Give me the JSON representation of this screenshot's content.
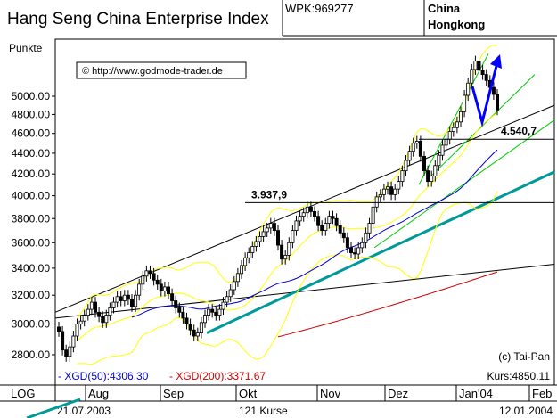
{
  "header": {
    "title": "Hang Seng China Enterprise Index",
    "wpk": "WPK:969277",
    "region_line1": "China",
    "region_line2": "Hongkong"
  },
  "copyright": "© http://www.godmode-trader.de",
  "footer": {
    "log_label": "LOG",
    "start_date": "21.07.2003",
    "count": "121 Kurse",
    "end_date": "12.01.2004"
  },
  "legend": {
    "xgd50": "- XGD(50):4306.30",
    "xgd200": "- XGD(200):3371.67",
    "source": "(c) Tai-Pan",
    "kurs": "Kurs:4850.11"
  },
  "colors": {
    "candle": "#000000",
    "trend_line": "#000000",
    "channel_line": "#009999",
    "green_line": "#00cc00",
    "bollinger": "#ffff00",
    "xgd50": "#0000cc",
    "xgd200": "#cc0000",
    "arrow": "#0000ff"
  },
  "annotations": {
    "level_upper": "4.540,7",
    "level_lower": "3.937,9"
  },
  "chart_data": {
    "type": "candlestick",
    "title": "Hang Seng China Enterprise Index",
    "ylabel": "Punkte",
    "yscale": "log",
    "ylim": [
      2680,
      5700
    ],
    "y_ticks": [
      "2800.00",
      "3000.00",
      "3200.00",
      "3400.00",
      "3600.00",
      "3800.00",
      "4000.00",
      "4200.00",
      "4400.00",
      "4600.00",
      "4800.00",
      "5000.00"
    ],
    "x_ticks": [
      "Aug",
      "Sep",
      "Okt",
      "Nov",
      "Dez",
      "Jan'04",
      "Feb"
    ],
    "horizontal_levels": [
      4540.7,
      3937.9
    ],
    "closes": [
      2950,
      2830,
      2790,
      2850,
      2920,
      3000,
      3020,
      3060,
      3100,
      3150,
      3080,
      3050,
      3010,
      3060,
      3110,
      3150,
      3190,
      3160,
      3200,
      3170,
      3120,
      3200,
      3280,
      3340,
      3380,
      3360,
      3310,
      3280,
      3230,
      3260,
      3210,
      3160,
      3110,
      3080,
      3040,
      3000,
      2960,
      2920,
      2940,
      3010,
      3060,
      3100,
      3080,
      3060,
      3100,
      3150,
      3190,
      3240,
      3300,
      3360,
      3420,
      3480,
      3520,
      3570,
      3610,
      3650,
      3690,
      3720,
      3760,
      3700,
      3580,
      3470,
      3500,
      3600,
      3700,
      3780,
      3820,
      3850,
      3900,
      3860,
      3820,
      3740,
      3700,
      3760,
      3820,
      3800,
      3740,
      3680,
      3640,
      3560,
      3520,
      3510,
      3560,
      3600,
      3680,
      3760,
      3900,
      3990,
      4010,
      4060,
      4080,
      4010,
      4060,
      4130,
      4230,
      4330,
      4420,
      4500,
      4520,
      4370,
      4230,
      4130,
      4180,
      4280,
      4380,
      4480,
      4540,
      4620,
      4660,
      4720,
      4830,
      5010,
      5150,
      5310,
      5410,
      5300,
      5250,
      5180,
      5100,
      5020,
      4850
    ],
    "xgd50_current": 4306.3,
    "xgd200_current": 3371.67,
    "last_close": 4850.11
  }
}
